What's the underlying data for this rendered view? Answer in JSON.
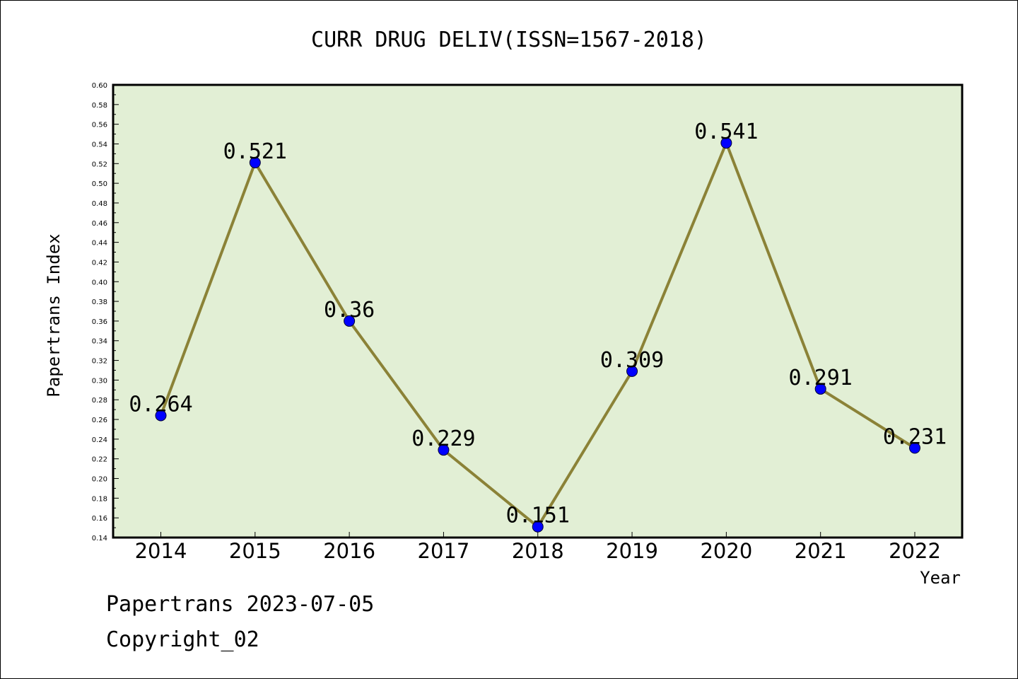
{
  "chart_data": {
    "type": "line",
    "title": "CURR DRUG DELIV(ISSN=1567-2018)",
    "xlabel": "Year",
    "ylabel": "Papertrans Index",
    "categories": [
      "2014",
      "2015",
      "2016",
      "2017",
      "2018",
      "2019",
      "2020",
      "2021",
      "2022"
    ],
    "values": [
      0.264,
      0.521,
      0.36,
      0.229,
      0.151,
      0.309,
      0.541,
      0.291,
      0.231
    ],
    "data_labels": [
      "0.264",
      "0.521",
      "0.36",
      "0.229",
      "0.151",
      "0.309",
      "0.541",
      "0.291",
      "0.231"
    ],
    "ylim": [
      0.14,
      0.6
    ],
    "yticks": [
      "0.14",
      "0.16",
      "0.18",
      "0.20",
      "0.22",
      "0.24",
      "0.26",
      "0.28",
      "0.30",
      "0.32",
      "0.34",
      "0.36",
      "0.38",
      "0.40",
      "0.42",
      "0.44",
      "0.46",
      "0.48",
      "0.50",
      "0.52",
      "0.54",
      "0.56",
      "0.58",
      "0.60"
    ],
    "grid": false,
    "colors": {
      "plot_bg": "#e2efd5",
      "line": "#8b8237",
      "marker": "#0000ff"
    }
  },
  "footer": {
    "line1": "Papertrans 2023-07-05",
    "line2": "Copyright_02"
  }
}
